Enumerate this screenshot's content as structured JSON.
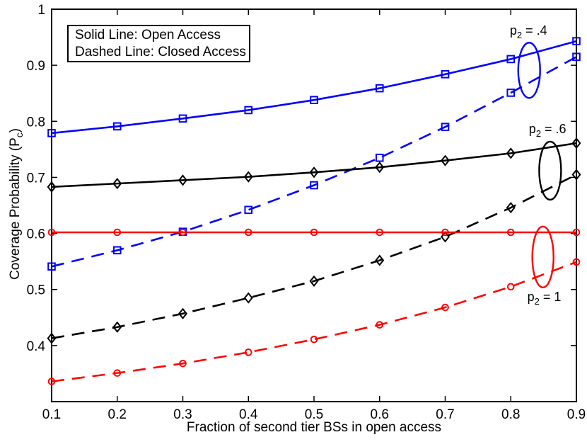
{
  "figure": {
    "background": "#ffffff",
    "legend": {
      "line1": "Solid Line: Open Access",
      "line2": "Dashed Line: Closed Access"
    },
    "axes": {
      "x_label": "Fraction of second tier BSs in open access",
      "y_label_pre": "Coverage Probability (P",
      "y_label_sub": "c",
      "y_label_post": ")"
    }
  },
  "chart_data": {
    "type": "line",
    "title": "",
    "xlabel": "Fraction of second tier BSs in open access",
    "ylabel": "Coverage Probability (P_c)",
    "xlim": [
      0.1,
      0.9
    ],
    "ylim": [
      0.3,
      1.0
    ],
    "grid": false,
    "legend_position": "top-left",
    "x": [
      0.1,
      0.2,
      0.3,
      0.4,
      0.5,
      0.6,
      0.7,
      0.8,
      0.9
    ],
    "x_ticks": [
      {
        "v": 0.1,
        "label": "0.1"
      },
      {
        "v": 0.2,
        "label": "0.2"
      },
      {
        "v": 0.3,
        "label": "0.3"
      },
      {
        "v": 0.4,
        "label": "0.4"
      },
      {
        "v": 0.5,
        "label": "0.5"
      },
      {
        "v": 0.6,
        "label": "0.6"
      },
      {
        "v": 0.7,
        "label": "0.7"
      },
      {
        "v": 0.8,
        "label": "0.8"
      },
      {
        "v": 0.9,
        "label": "0.9"
      }
    ],
    "y_ticks": [
      {
        "v": 0.4,
        "label": "0.4"
      },
      {
        "v": 0.5,
        "label": "0.5"
      },
      {
        "v": 0.6,
        "label": "0.6"
      },
      {
        "v": 0.7,
        "label": "0.7"
      },
      {
        "v": 0.8,
        "label": "0.8"
      },
      {
        "v": 0.9,
        "label": "0.9"
      },
      {
        "v": 1.0,
        "label": "1"
      }
    ],
    "series": [
      {
        "id": "open-p2-0.4",
        "name": "Open Access, p2 = .4",
        "access": "open",
        "p2": ".4",
        "color": "#0000FF",
        "line": "solid",
        "marker": "square",
        "values": [
          0.779,
          0.791,
          0.805,
          0.82,
          0.838,
          0.859,
          0.884,
          0.911,
          0.943
        ]
      },
      {
        "id": "closed-p2-0.4",
        "name": "Closed Access, p2 = .4",
        "access": "closed",
        "p2": ".4",
        "color": "#0000FF",
        "line": "dashed",
        "marker": "square",
        "values": [
          0.541,
          0.57,
          0.603,
          0.642,
          0.686,
          0.735,
          0.79,
          0.851,
          0.915
        ]
      },
      {
        "id": "open-p2-0.6",
        "name": "Open Access, p2 = .6",
        "access": "open",
        "p2": ".6",
        "color": "#000000",
        "line": "solid",
        "marker": "diamond",
        "values": [
          0.683,
          0.689,
          0.695,
          0.701,
          0.709,
          0.718,
          0.73,
          0.743,
          0.761
        ]
      },
      {
        "id": "closed-p2-0.6",
        "name": "Closed Access, p2 = .6",
        "access": "closed",
        "p2": ".6",
        "color": "#000000",
        "line": "dashed",
        "marker": "diamond",
        "values": [
          0.413,
          0.433,
          0.457,
          0.485,
          0.515,
          0.552,
          0.594,
          0.646,
          0.705
        ]
      },
      {
        "id": "open-p2-1",
        "name": "Open Access, p2 = 1",
        "access": "open",
        "p2": "1",
        "color": "#FF0000",
        "line": "solid",
        "marker": "circle",
        "values": [
          0.602,
          0.602,
          0.602,
          0.602,
          0.602,
          0.602,
          0.602,
          0.602,
          0.602
        ]
      },
      {
        "id": "closed-p2-1",
        "name": "Closed Access, p2 = 1",
        "access": "closed",
        "p2": "1",
        "color": "#FF0000",
        "line": "dashed",
        "marker": "circle",
        "values": [
          0.336,
          0.351,
          0.368,
          0.388,
          0.411,
          0.437,
          0.468,
          0.505,
          0.549
        ]
      }
    ],
    "annotations": [
      {
        "id": "p2-0.4",
        "label_pre": "p",
        "label_sub": "2",
        "label_post": " = .4",
        "color": "#0000FF",
        "label_pos": {
          "x": 0.827,
          "y": 0.96
        },
        "ellipse": {
          "cx": 0.828,
          "cy": 0.891,
          "rx": 0.0167,
          "ry": 0.0493
        }
      },
      {
        "id": "p2-0.6",
        "label_pre": "p",
        "label_sub": "2",
        "label_post": " = .6",
        "color": "#000000",
        "label_pos": {
          "x": 0.856,
          "y": 0.784
        },
        "ellipse": {
          "cx": 0.86,
          "cy": 0.712,
          "rx": 0.0167,
          "ry": 0.0518
        }
      },
      {
        "id": "p2-1",
        "label_pre": "p",
        "label_sub": "2",
        "label_post": " = 1",
        "color": "#FF0000",
        "label_pos": {
          "x": 0.851,
          "y": 0.484
        },
        "ellipse": {
          "cx": 0.849,
          "cy": 0.558,
          "rx": 0.0162,
          "ry": 0.0543
        }
      }
    ]
  }
}
